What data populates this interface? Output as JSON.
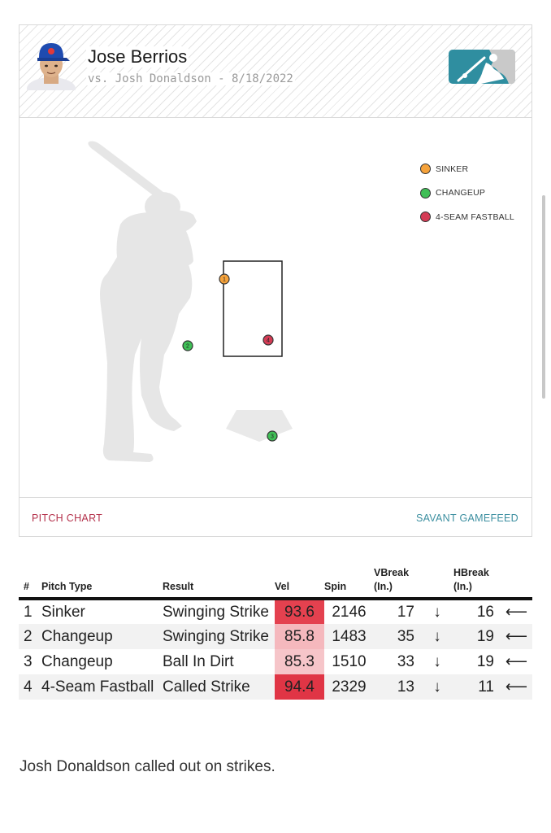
{
  "header": {
    "pitcher_name": "Jose Berrios",
    "matchup": "vs. Josh Donaldson - 8/18/2022"
  },
  "legend": [
    {
      "label": "SINKER",
      "color": "#f5a23a"
    },
    {
      "label": "CHANGEUP",
      "color": "#3fbf56"
    },
    {
      "label": "4-SEAM FASTBALL",
      "color": "#d43c55"
    }
  ],
  "pitch_markers": [
    {
      "number": "1",
      "color": "#f5a23a"
    },
    {
      "number": "2",
      "color": "#3fbf56"
    },
    {
      "number": "3",
      "color": "#3fbf56"
    },
    {
      "number": "4",
      "color": "#d43c55"
    }
  ],
  "footer": {
    "pitch_chart_label": "PITCH CHART",
    "gamefeed_label": "SAVANT GAMEFEED"
  },
  "table": {
    "headers": {
      "num": "#",
      "pitch_type": "Pitch Type",
      "result": "Result",
      "vel": "Vel",
      "spin": "Spin",
      "vbreak": "VBreak",
      "vbreak_unit": "(In.)",
      "hbreak": "HBreak",
      "hbreak_unit": "(In.)"
    },
    "rows": [
      {
        "num": "1",
        "pitch_type": "Sinker",
        "result": "Swinging Strike",
        "vel": "93.6",
        "vel_color": "#e4414f",
        "spin": "2146",
        "vbreak": "17",
        "vbreak_arrow": "↓",
        "hbreak": "16",
        "hbreak_arrow": "⟵"
      },
      {
        "num": "2",
        "pitch_type": "Changeup",
        "result": "Swinging Strike",
        "vel": "85.8",
        "vel_color": "#f5b8bd",
        "spin": "1483",
        "vbreak": "35",
        "vbreak_arrow": "↓",
        "hbreak": "19",
        "hbreak_arrow": "⟵"
      },
      {
        "num": "3",
        "pitch_type": "Changeup",
        "result": "Ball In Dirt",
        "vel": "85.3",
        "vel_color": "#f6c5c9",
        "spin": "1510",
        "vbreak": "33",
        "vbreak_arrow": "↓",
        "hbreak": "19",
        "hbreak_arrow": "⟵"
      },
      {
        "num": "4",
        "pitch_type": "4-Seam Fastball",
        "result": "Called Strike",
        "vel": "94.4",
        "vel_color": "#e03545",
        "spin": "2329",
        "vbreak": "13",
        "vbreak_arrow": "↓",
        "hbreak": "11",
        "hbreak_arrow": "⟵"
      }
    ]
  },
  "summary": "Josh Donaldson called out on strikes."
}
